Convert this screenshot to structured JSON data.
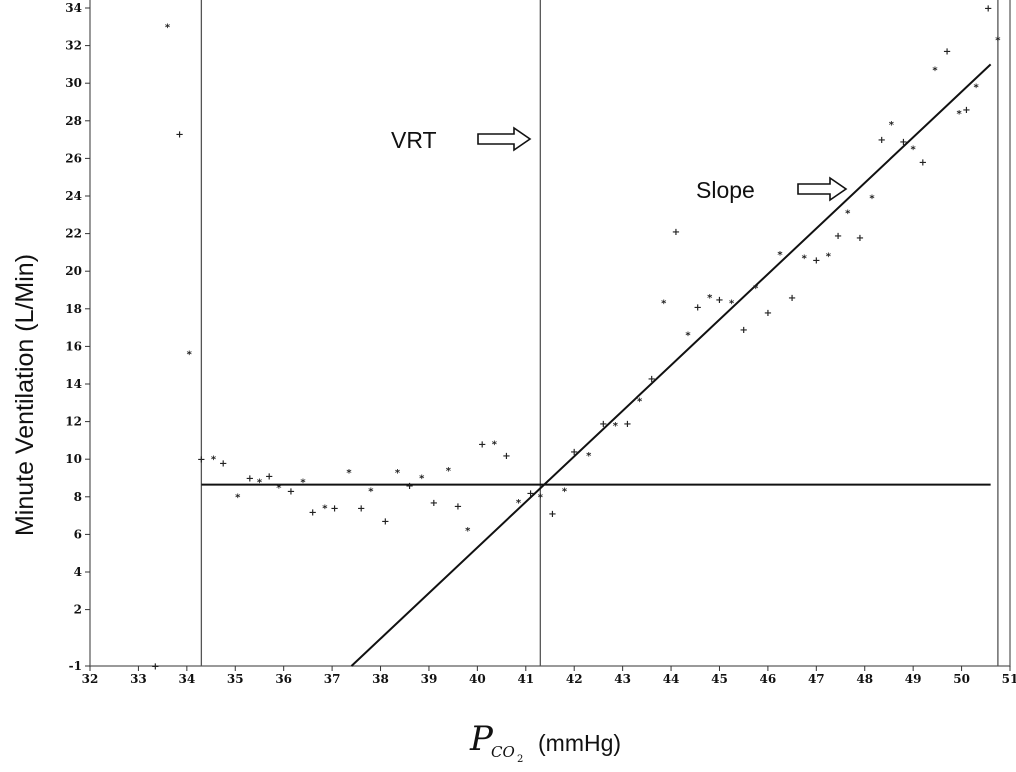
{
  "chart_data": {
    "type": "scatter",
    "title": "",
    "xlabel": {
      "symbol": "P",
      "subscript": "CO",
      "subscript2": "2",
      "unit": "(mmHg)"
    },
    "ylabel": "Minute  Ventilation (L/Min)",
    "xlim": [
      32,
      51
    ],
    "ylim": [
      -1,
      34
    ],
    "x_ticks": [
      "32",
      "33",
      "34",
      "35",
      "36",
      "37",
      "38",
      "39",
      "40",
      "41",
      "42",
      "43",
      "44",
      "45",
      "46",
      "47",
      "48",
      "49",
      "50",
      "51"
    ],
    "y_ticks": [
      "-1",
      "2",
      "4",
      "6",
      "8",
      "10",
      "12",
      "14",
      "16",
      "18",
      "20",
      "22",
      "24",
      "26",
      "28",
      "30",
      "32",
      "34"
    ],
    "y_tick_values": [
      -1,
      2,
      4,
      6,
      8,
      10,
      12,
      14,
      16,
      18,
      20,
      22,
      24,
      26,
      28,
      30,
      32,
      34
    ],
    "points": [
      [
        33.35,
        -1
      ],
      [
        33.6,
        33
      ],
      [
        33.85,
        27.3
      ],
      [
        34.05,
        15.6
      ],
      [
        34.3,
        10
      ],
      [
        34.55,
        10
      ],
      [
        34.75,
        9.8
      ],
      [
        35.05,
        8
      ],
      [
        35.3,
        9
      ],
      [
        35.5,
        8.8
      ],
      [
        35.7,
        9.1
      ],
      [
        35.9,
        8.5
      ],
      [
        36.15,
        8.3
      ],
      [
        36.4,
        8.8
      ],
      [
        36.6,
        7.2
      ],
      [
        36.85,
        7.4
      ],
      [
        37.05,
        7.4
      ],
      [
        37.35,
        9.3
      ],
      [
        37.6,
        7.4
      ],
      [
        37.8,
        8.3
      ],
      [
        38.1,
        6.7
      ],
      [
        38.35,
        9.3
      ],
      [
        38.6,
        8.6
      ],
      [
        38.85,
        9
      ],
      [
        39.1,
        7.7
      ],
      [
        39.4,
        9.4
      ],
      [
        39.6,
        7.5
      ],
      [
        39.8,
        6.2
      ],
      [
        40.1,
        10.8
      ],
      [
        40.35,
        10.8
      ],
      [
        40.6,
        10.2
      ],
      [
        40.85,
        7.7
      ],
      [
        41.1,
        8.2
      ],
      [
        41.3,
        8
      ],
      [
        41.55,
        7.1
      ],
      [
        41.8,
        8.3
      ],
      [
        42.0,
        10.4
      ],
      [
        42.3,
        10.2
      ],
      [
        42.6,
        11.9
      ],
      [
        42.85,
        11.8
      ],
      [
        43.1,
        11.9
      ],
      [
        43.35,
        13.1
      ],
      [
        43.6,
        14.3
      ],
      [
        43.85,
        18.3
      ],
      [
        44.1,
        22.1
      ],
      [
        44.35,
        16.6
      ],
      [
        44.55,
        18.1
      ],
      [
        44.8,
        18.6
      ],
      [
        45.0,
        18.5
      ],
      [
        45.25,
        18.3
      ],
      [
        45.5,
        16.9
      ],
      [
        45.75,
        19.1
      ],
      [
        46.0,
        17.8
      ],
      [
        46.25,
        20.9
      ],
      [
        46.5,
        18.6
      ],
      [
        46.75,
        20.7
      ],
      [
        47.0,
        20.6
      ],
      [
        47.25,
        20.8
      ],
      [
        47.45,
        21.9
      ],
      [
        47.65,
        23.1
      ],
      [
        47.9,
        21.8
      ],
      [
        48.15,
        23.9
      ],
      [
        48.35,
        27
      ],
      [
        48.55,
        27.8
      ],
      [
        48.8,
        26.9
      ],
      [
        49.0,
        26.5
      ],
      [
        49.2,
        25.8
      ],
      [
        49.45,
        30.7
      ],
      [
        49.7,
        31.7
      ],
      [
        49.95,
        28.4
      ],
      [
        50.1,
        28.6
      ],
      [
        50.3,
        29.8
      ],
      [
        50.55,
        34
      ],
      [
        50.75,
        32.3
      ]
    ],
    "plateau_line": {
      "x": [
        34.3,
        50.6
      ],
      "y": 8.65
    },
    "slope_line": {
      "x": [
        37.4,
        50.6
      ],
      "y": [
        -1,
        31
      ]
    },
    "vertical_lines": [
      34.3,
      41.3,
      50.75
    ],
    "annotations": [
      {
        "text": "VRT",
        "arrow_to_x": 41.3,
        "y": 27.4
      },
      {
        "text": "Slope",
        "y": 24.5
      }
    ],
    "grid": false,
    "legend": "none"
  }
}
